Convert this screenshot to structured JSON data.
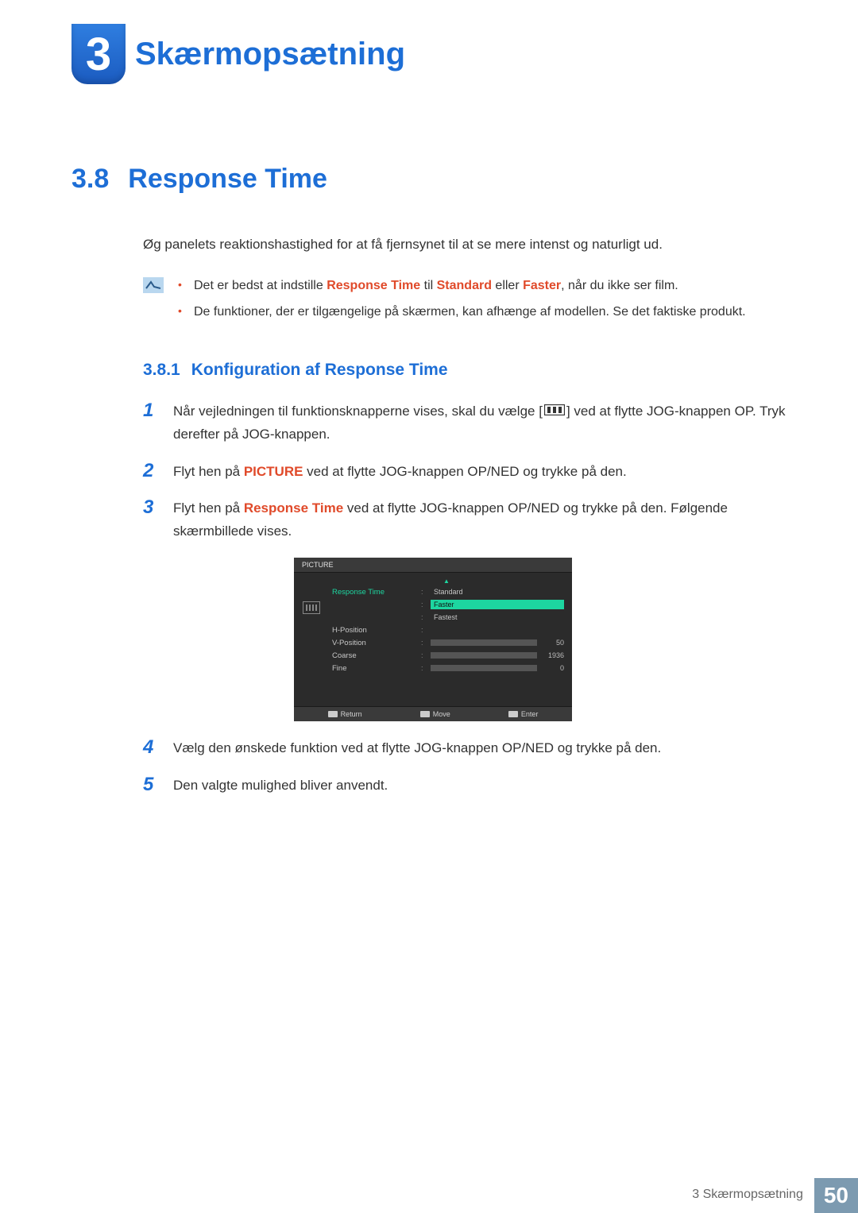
{
  "chapter": {
    "number": "3",
    "title": "Skærmopsætning"
  },
  "section": {
    "number": "3.8",
    "title": "Response Time"
  },
  "intro": "Øg panelets reaktionshastighed for at få fjernsynet til at se mere intenst og naturligt ud.",
  "notes": {
    "icon_bg": "#b9d7ef",
    "item1_pre": "Det er bedst at indstille ",
    "item1_hl1": "Response Time",
    "item1_mid": " til ",
    "item1_hl2": "Standard",
    "item1_mid2": " eller ",
    "item1_hl3": "Faster",
    "item1_post": ", når du ikke ser film.",
    "item2": "De funktioner, der er tilgængelige på skærmen, kan afhænge af modellen. Se det faktiske produkt."
  },
  "subsection": {
    "number": "3.8.1",
    "title": "Konfiguration af Response Time"
  },
  "steps": {
    "s1_pre": "Når vejledningen til funktionsknapperne vises, skal du vælge [",
    "s1_post": "] ved at flytte JOG-knappen OP. Tryk derefter på JOG-knappen.",
    "s2_pre": "Flyt hen på ",
    "s2_hl": "PICTURE",
    "s2_post": " ved at flytte JOG-knappen OP/NED og trykke på den.",
    "s3_pre": "Flyt hen på ",
    "s3_hl": "Response Time",
    "s3_post": " ved at flytte JOG-knappen OP/NED og trykke på den. Følgende skærmbillede vises.",
    "s4": "Vælg den ønskede funktion ved at flytte JOG-knappen OP/NED og trykke på den.",
    "s5": "Den valgte mulighed bliver anvendt."
  },
  "osd": {
    "header": "PICTURE",
    "rows": [
      {
        "label": "Response Time",
        "active": true,
        "kind": "options",
        "options": [
          "Standard",
          "Faster",
          "Fastest"
        ],
        "selected_index": 1
      },
      {
        "label": "H-Position",
        "active": false,
        "kind": "text",
        "text": ""
      },
      {
        "label": "V-Position",
        "active": false,
        "kind": "bar",
        "value": 50,
        "max": 100
      },
      {
        "label": "Coarse",
        "active": false,
        "kind": "bar",
        "value": 1936,
        "max": 2200
      },
      {
        "label": "Fine",
        "active": false,
        "kind": "bar",
        "value": 0,
        "max": 100
      }
    ],
    "footer": {
      "return": "Return",
      "move": "Move",
      "enter": "Enter"
    },
    "colors": {
      "bg": "#2b2b2b",
      "header_bg": "#3a3a3a",
      "active": "#1dd6a0",
      "text": "#c7c7c7"
    }
  },
  "footer": {
    "text": "3 Skærmopsætning",
    "page": "50",
    "badge_bg": "#7c9ab0"
  },
  "colors": {
    "accent_blue": "#1d6ed6",
    "accent_orange": "#e04a2a"
  }
}
